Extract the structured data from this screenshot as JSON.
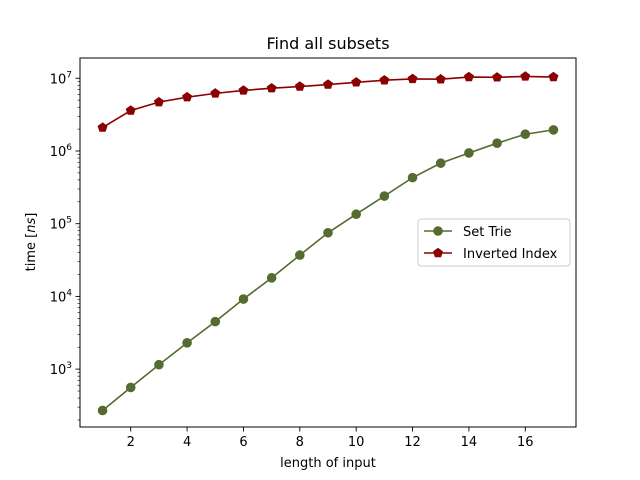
{
  "chart_data": {
    "type": "line",
    "title": "Find all subsets",
    "xlabel": "length of input",
    "ylabel": {
      "prefix": "time [",
      "unit": "ns",
      "suffix": "]"
    },
    "y_scale": "log",
    "xlim": [
      0.2,
      17.8
    ],
    "ylim": [
      160,
      19000000
    ],
    "x_ticks": [
      2,
      4,
      6,
      8,
      10,
      12,
      14,
      16
    ],
    "y_ticks": [
      {
        "value": 1000,
        "base": "10",
        "exp": "3"
      },
      {
        "value": 10000,
        "base": "10",
        "exp": "4"
      },
      {
        "value": 100000,
        "base": "10",
        "exp": "5"
      },
      {
        "value": 1000000,
        "base": "10",
        "exp": "6"
      },
      {
        "value": 10000000,
        "base": "10",
        "exp": "7"
      }
    ],
    "grid": false,
    "legend_position": "center-right",
    "x": [
      1,
      2,
      3,
      4,
      5,
      6,
      7,
      8,
      9,
      10,
      11,
      12,
      13,
      14,
      15,
      16,
      17
    ],
    "series": [
      {
        "name": "Set Trie",
        "color": "#556b2f",
        "marker": "circle",
        "values": [
          270,
          560,
          1150,
          2300,
          4500,
          9200,
          18000,
          37000,
          75000,
          135000,
          240000,
          430000,
          680000,
          940000,
          1280000,
          1700000,
          1950000
        ]
      },
      {
        "name": "Inverted Index",
        "color": "#8b0000",
        "marker": "pentagon",
        "values": [
          2100000,
          3600000,
          4700000,
          5500000,
          6200000,
          6800000,
          7300000,
          7700000,
          8200000,
          8800000,
          9400000,
          9800000,
          9700000,
          10400000,
          10300000,
          10600000,
          10400000
        ]
      }
    ]
  }
}
